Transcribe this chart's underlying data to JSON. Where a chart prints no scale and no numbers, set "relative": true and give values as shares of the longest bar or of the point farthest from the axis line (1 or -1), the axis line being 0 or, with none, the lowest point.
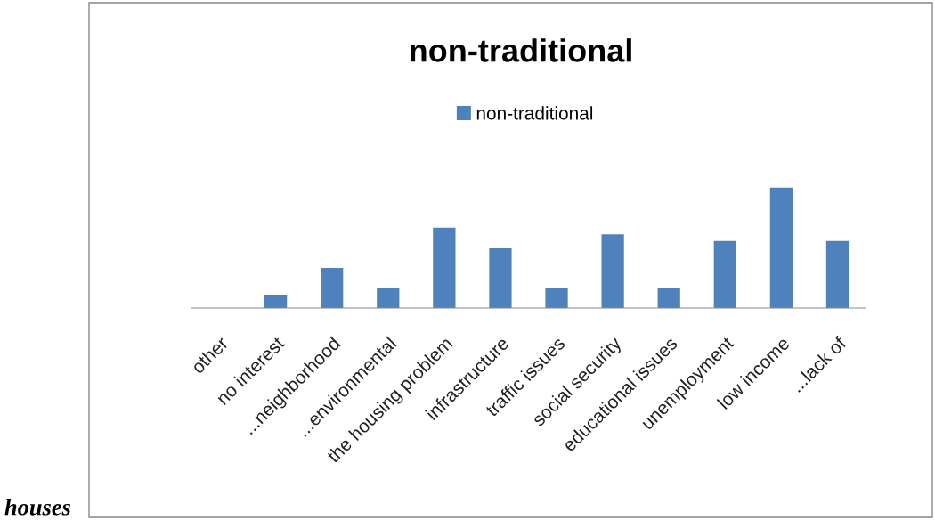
{
  "chart_data": {
    "type": "bar",
    "title": "non-traditional",
    "relative": true,
    "categories": [
      "other",
      "no interest",
      "...neighborhood",
      "...environmental",
      "the housing problem",
      "infrastructure",
      "traffic issues",
      "social security",
      "educational issues",
      "unemployment",
      "low income",
      "...lack of"
    ],
    "series": [
      {
        "name": "non-traditional",
        "color": "#4f81bd",
        "values": [
          0,
          0.111,
          0.333,
          0.167,
          0.667,
          0.5,
          0.167,
          0.611,
          0.167,
          0.556,
          1,
          0.556
        ]
      }
    ],
    "legend": "top",
    "annotations": [
      "houses"
    ]
  }
}
